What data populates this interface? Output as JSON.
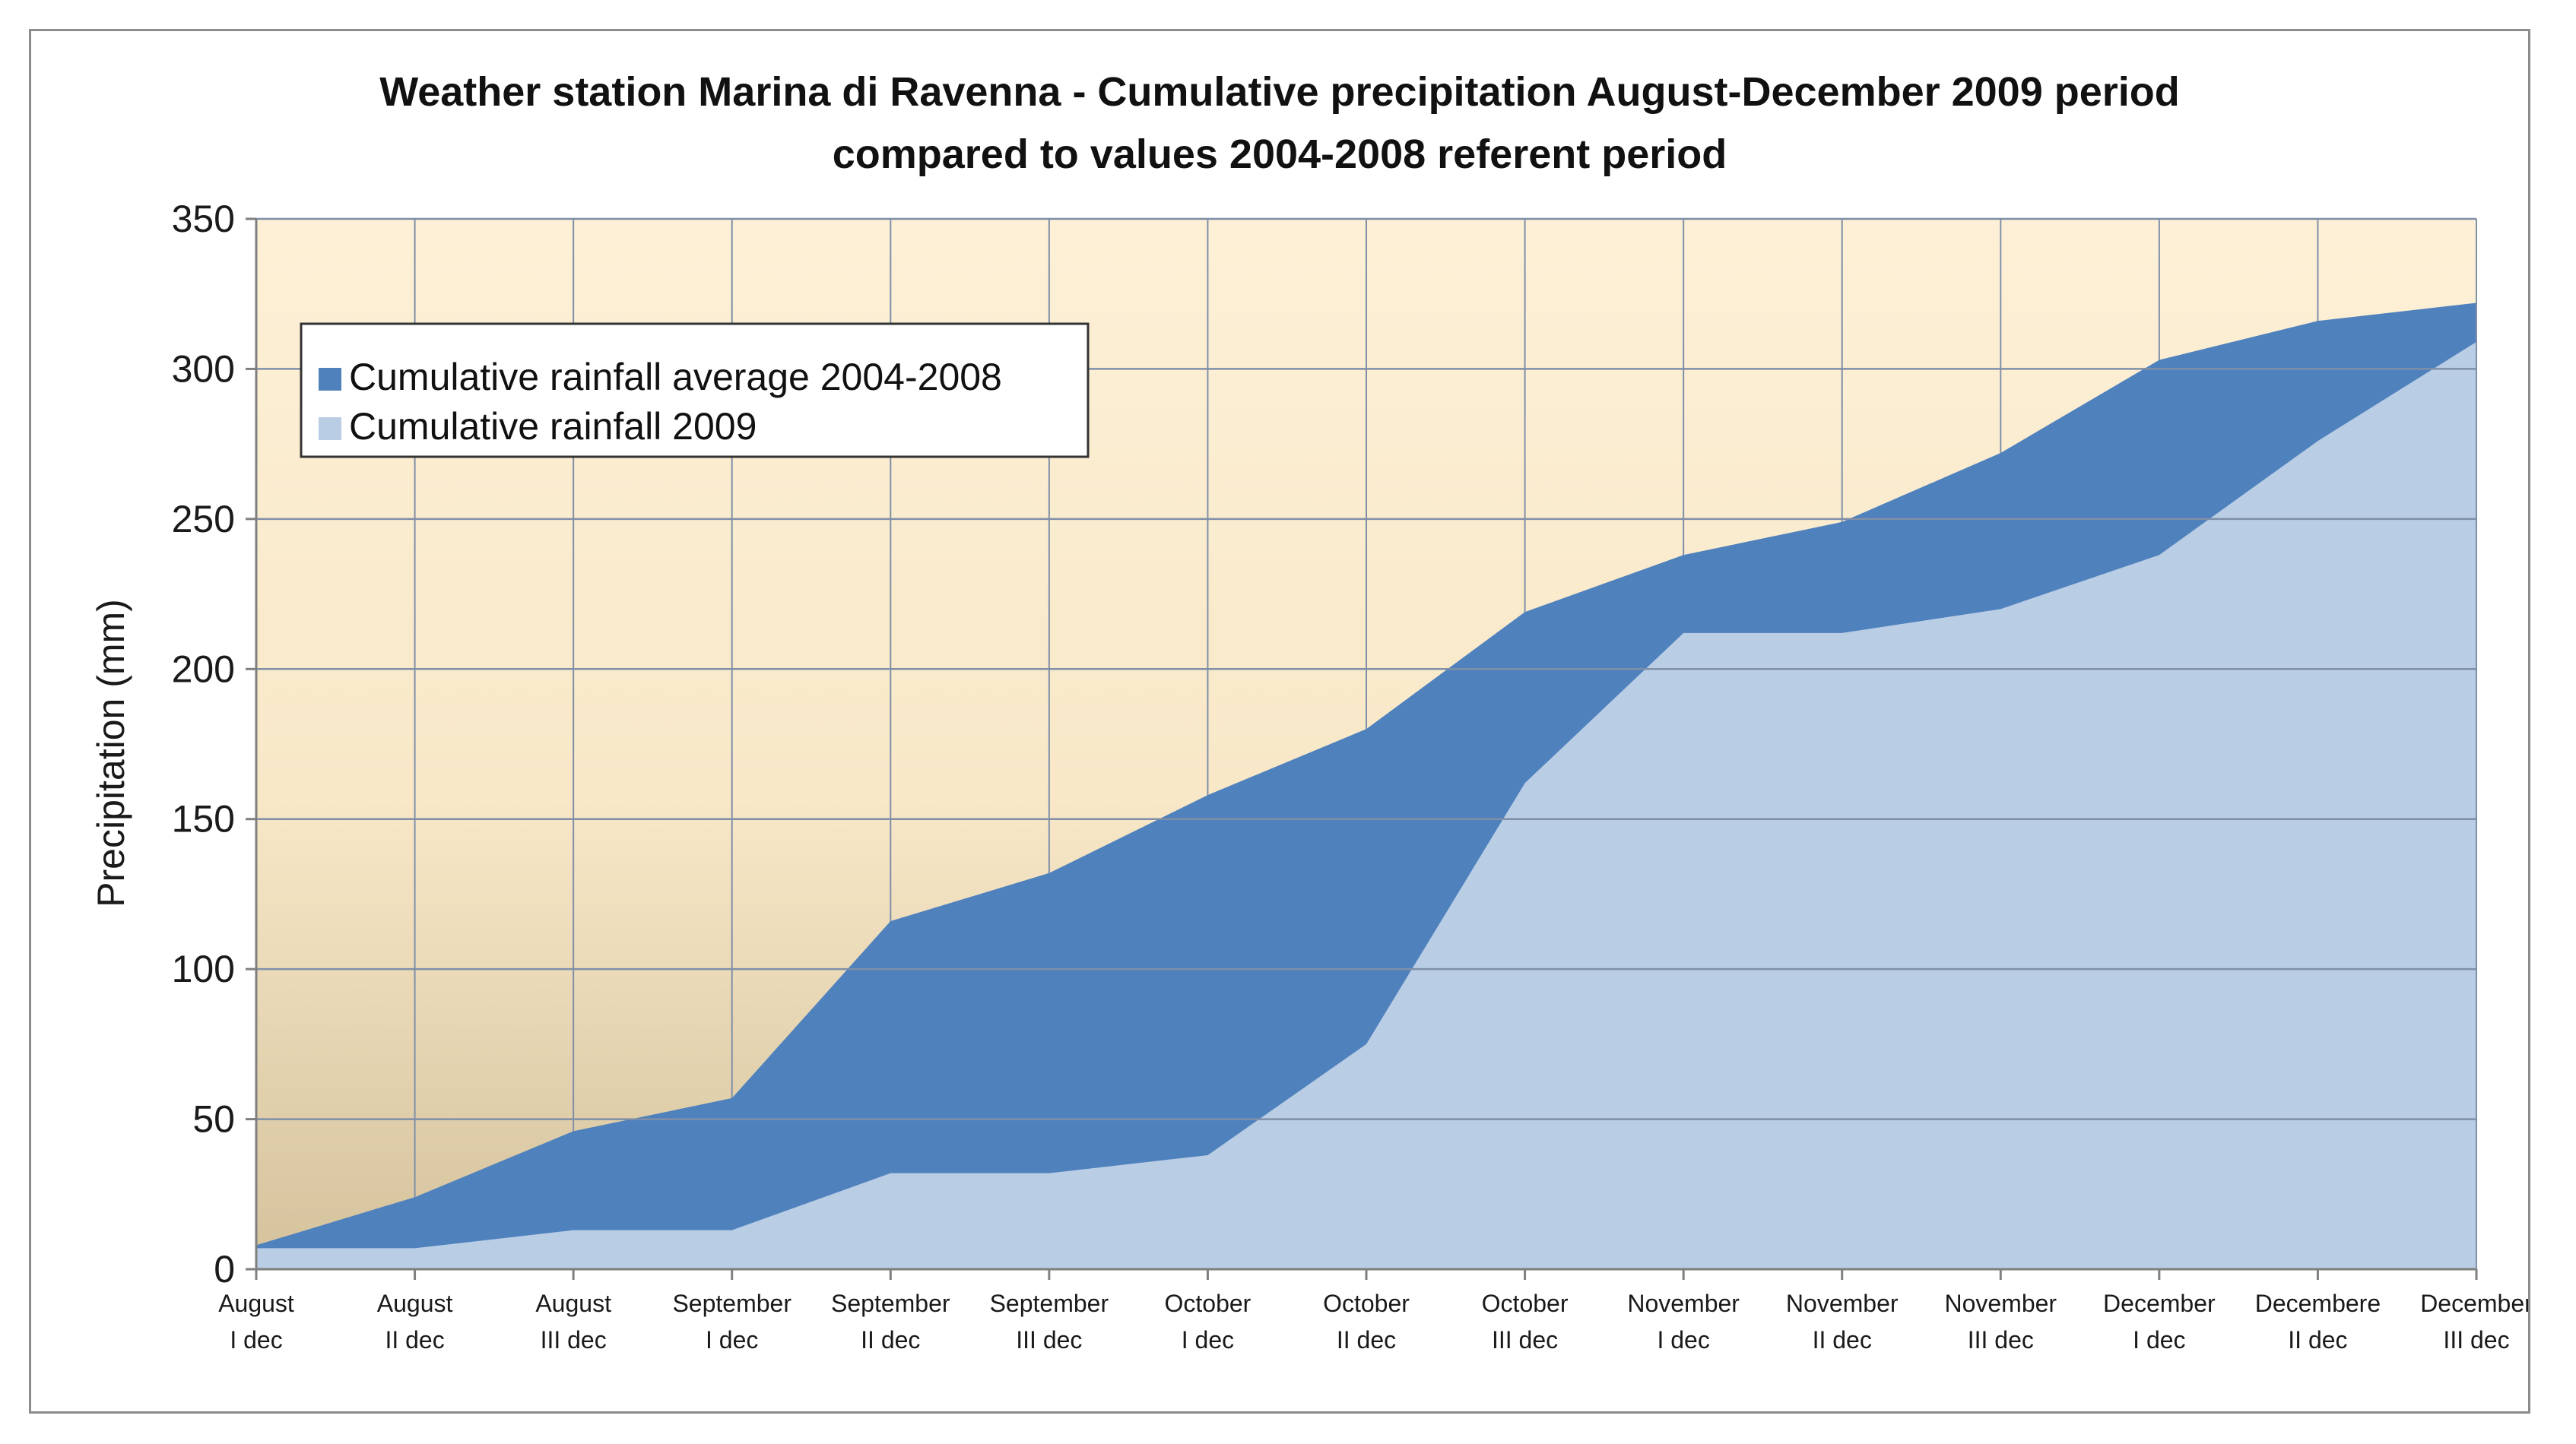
{
  "chart_data": {
    "type": "area",
    "title": "Weather station Marina di Ravenna  -  Cumulative precipitation August-December 2009 period",
    "subtitle": "compared to values 2004-2008 referent period",
    "ylabel": "Precipitation (mm)",
    "xlabel": "",
    "ylim": [
      0,
      350
    ],
    "yticks": [
      0,
      50,
      100,
      150,
      200,
      250,
      300,
      350
    ],
    "grid": true,
    "legend_position": "top-left",
    "categories": [
      [
        "August",
        "I dec"
      ],
      [
        "August",
        "II dec"
      ],
      [
        "August",
        "III dec"
      ],
      [
        "September",
        "I dec"
      ],
      [
        "September",
        "II dec"
      ],
      [
        "September",
        "III dec"
      ],
      [
        "October",
        "I dec"
      ],
      [
        "October",
        "II dec"
      ],
      [
        "October",
        "III dec"
      ],
      [
        "November",
        "I dec"
      ],
      [
        "November",
        "II dec"
      ],
      [
        "November",
        "III dec"
      ],
      [
        "December",
        "I dec"
      ],
      [
        "Decembere",
        "II dec"
      ],
      [
        "December",
        "III dec"
      ]
    ],
    "series": [
      {
        "name": "Cumulative rainfall average 2004-2008",
        "color": "#4f81bd",
        "values": [
          8,
          24,
          46,
          57,
          116,
          132,
          158,
          180,
          219,
          238,
          249,
          272,
          303,
          316,
          322
        ]
      },
      {
        "name": "Cumulative rainfall 2009",
        "color": "#b9cde5",
        "values": [
          7,
          7,
          13,
          13,
          32,
          32,
          38,
          75,
          162,
          212,
          212,
          220,
          238,
          276,
          309
        ]
      }
    ],
    "plot_background_top": "#fdf0d6",
    "plot_background_bottom": "#d6c5a0",
    "gridline_color": "#7f8fa8"
  }
}
